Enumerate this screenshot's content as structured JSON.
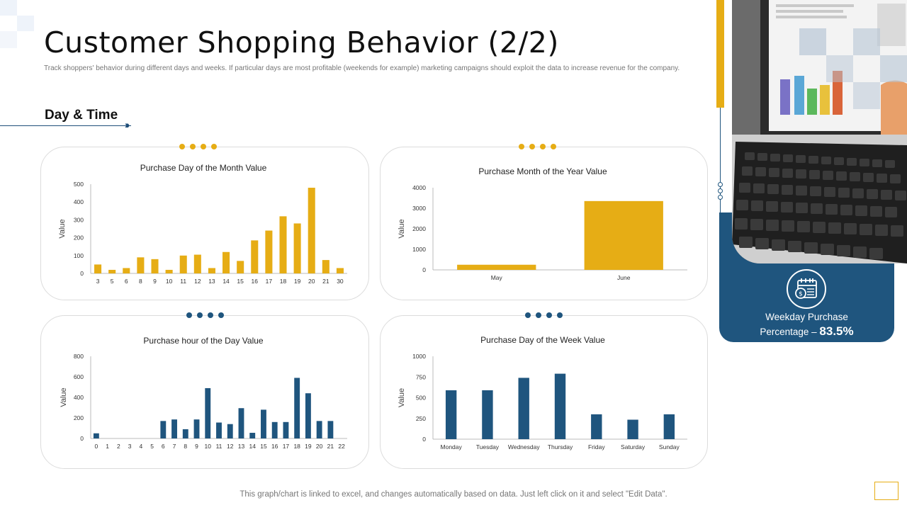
{
  "slide": {
    "title": "Customer Shopping Behavior (2/2)",
    "subtitle": "Track shoppers' behavior during different days and weeks. If particular days are most profitable (weekends for example) marketing campaigns should exploit the data to increase revenue for the company.",
    "section_title": "Day & Time",
    "footer_note": "This graph/chart is linked to excel,  and changes automatically based on data. Just left click on it and select \"Edit Data\".",
    "accent_yellow": "#e6ad15",
    "accent_blue": "#1f557e"
  },
  "side_panel": {
    "label": "Weekday Purchase",
    "label_prefix": "Percentage – ",
    "value": "83.5%",
    "icon": "calendar-icon"
  },
  "chart_data": [
    {
      "type": "bar",
      "title": "Purchase Day of the Month Value",
      "ylabel": "Value",
      "xlabel": "",
      "ylim": [
        0,
        500
      ],
      "yticks": [
        0,
        100,
        200,
        300,
        400,
        500
      ],
      "color": "#e6ad15",
      "categories": [
        "3",
        "5",
        "6",
        "8",
        "9",
        "10",
        "11",
        "12",
        "13",
        "14",
        "15",
        "16",
        "17",
        "18",
        "19",
        "20",
        "21",
        "30"
      ],
      "values": [
        50,
        20,
        30,
        90,
        80,
        20,
        100,
        105,
        30,
        120,
        70,
        185,
        240,
        320,
        280,
        480,
        75,
        30
      ]
    },
    {
      "type": "bar",
      "title": "Purchase Month of the Year Value",
      "ylabel": "Value",
      "xlabel": "",
      "ylim": [
        0,
        4000
      ],
      "yticks": [
        0,
        1000,
        2000,
        3000,
        4000
      ],
      "color": "#e6ad15",
      "categories": [
        "May",
        "June"
      ],
      "values": [
        250,
        3350
      ]
    },
    {
      "type": "bar",
      "title": "Purchase hour of the Day Value",
      "ylabel": "Value",
      "xlabel": "",
      "ylim": [
        0,
        800
      ],
      "yticks": [
        0,
        200,
        400,
        600,
        800
      ],
      "color": "#1f557e",
      "categories": [
        "0",
        "1",
        "2",
        "3",
        "4",
        "5",
        "6",
        "7",
        "8",
        "9",
        "10",
        "11",
        "12",
        "13",
        "14",
        "15",
        "16",
        "17",
        "18",
        "19",
        "20",
        "21",
        "22"
      ],
      "values": [
        50,
        0,
        0,
        0,
        0,
        0,
        170,
        185,
        90,
        185,
        490,
        155,
        140,
        295,
        55,
        280,
        160,
        160,
        590,
        440,
        170,
        170,
        0
      ]
    },
    {
      "type": "bar",
      "title": "Purchase Day of the Week Value",
      "ylabel": "Value",
      "xlabel": "",
      "ylim": [
        0,
        1000
      ],
      "yticks": [
        0,
        250,
        500,
        750,
        1000
      ],
      "color": "#1f557e",
      "categories": [
        "Monday",
        "Tuesday",
        "Wednesday",
        "Thursday",
        "Friday",
        "Saturday",
        "Sunday"
      ],
      "values": [
        590,
        590,
        740,
        790,
        300,
        235,
        300
      ]
    }
  ]
}
